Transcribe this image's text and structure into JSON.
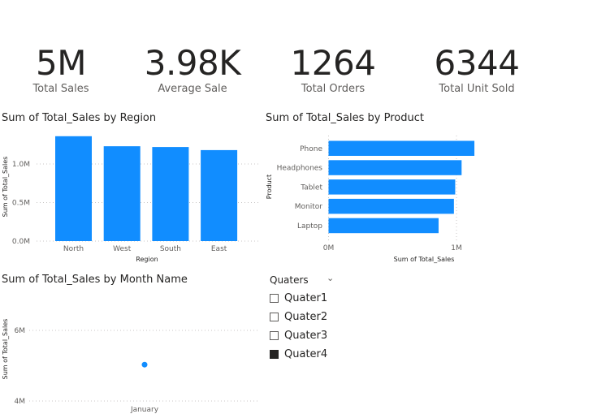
{
  "kpis": [
    {
      "value": "5M",
      "label": "Total Sales"
    },
    {
      "value": "3.98K",
      "label": "Average Sale"
    },
    {
      "value": "1264",
      "label": "Total Orders"
    },
    {
      "value": "6344",
      "label": "Total Unit Sold"
    }
  ],
  "colors": {
    "bar": "#118DFF",
    "grid": "#c8c6c4",
    "text": "#605e5c"
  },
  "chart_data": [
    {
      "type": "bar",
      "title": "Sum of Total_Sales by Region",
      "xlabel": "Region",
      "ylabel": "Sum of Total_Sales",
      "categories": [
        "North",
        "West",
        "South",
        "East"
      ],
      "values": [
        1.36,
        1.23,
        1.22,
        1.18
      ],
      "unit": "M",
      "yticks": [
        "0.0M",
        "0.5M",
        "1.0M"
      ],
      "ytick_values": [
        0,
        0.5,
        1.0
      ],
      "ylim": [
        0,
        1.4
      ],
      "grid": true
    },
    {
      "type": "bar",
      "orientation": "horizontal",
      "title": "Sum of Total_Sales by Product",
      "xlabel": "Sum of Total_Sales",
      "ylabel": "Product",
      "categories": [
        "Phone",
        "Headphones",
        "Tablet",
        "Monitor",
        "Laptop"
      ],
      "values": [
        1.14,
        1.04,
        0.99,
        0.98,
        0.86
      ],
      "unit": "M",
      "xticks": [
        "0M",
        "1M"
      ],
      "xtick_values": [
        0,
        1
      ],
      "xlim": [
        0,
        1.2
      ],
      "grid": true
    },
    {
      "type": "line",
      "title": "Sum of Total_Sales by Month Name",
      "xlabel": "",
      "ylabel": "Sum of Total_Sales",
      "categories": [
        "January"
      ],
      "values": [
        5.03
      ],
      "unit": "M",
      "yticks": [
        "4M",
        "6M"
      ],
      "ytick_values": [
        4,
        6
      ],
      "ylim": [
        4,
        6.3
      ],
      "grid": true
    }
  ],
  "slicer": {
    "title": "Quaters",
    "options": [
      {
        "label": "Quater1",
        "checked": false
      },
      {
        "label": "Quater2",
        "checked": false
      },
      {
        "label": "Quater3",
        "checked": false
      },
      {
        "label": "Quater4",
        "checked": true
      }
    ]
  }
}
